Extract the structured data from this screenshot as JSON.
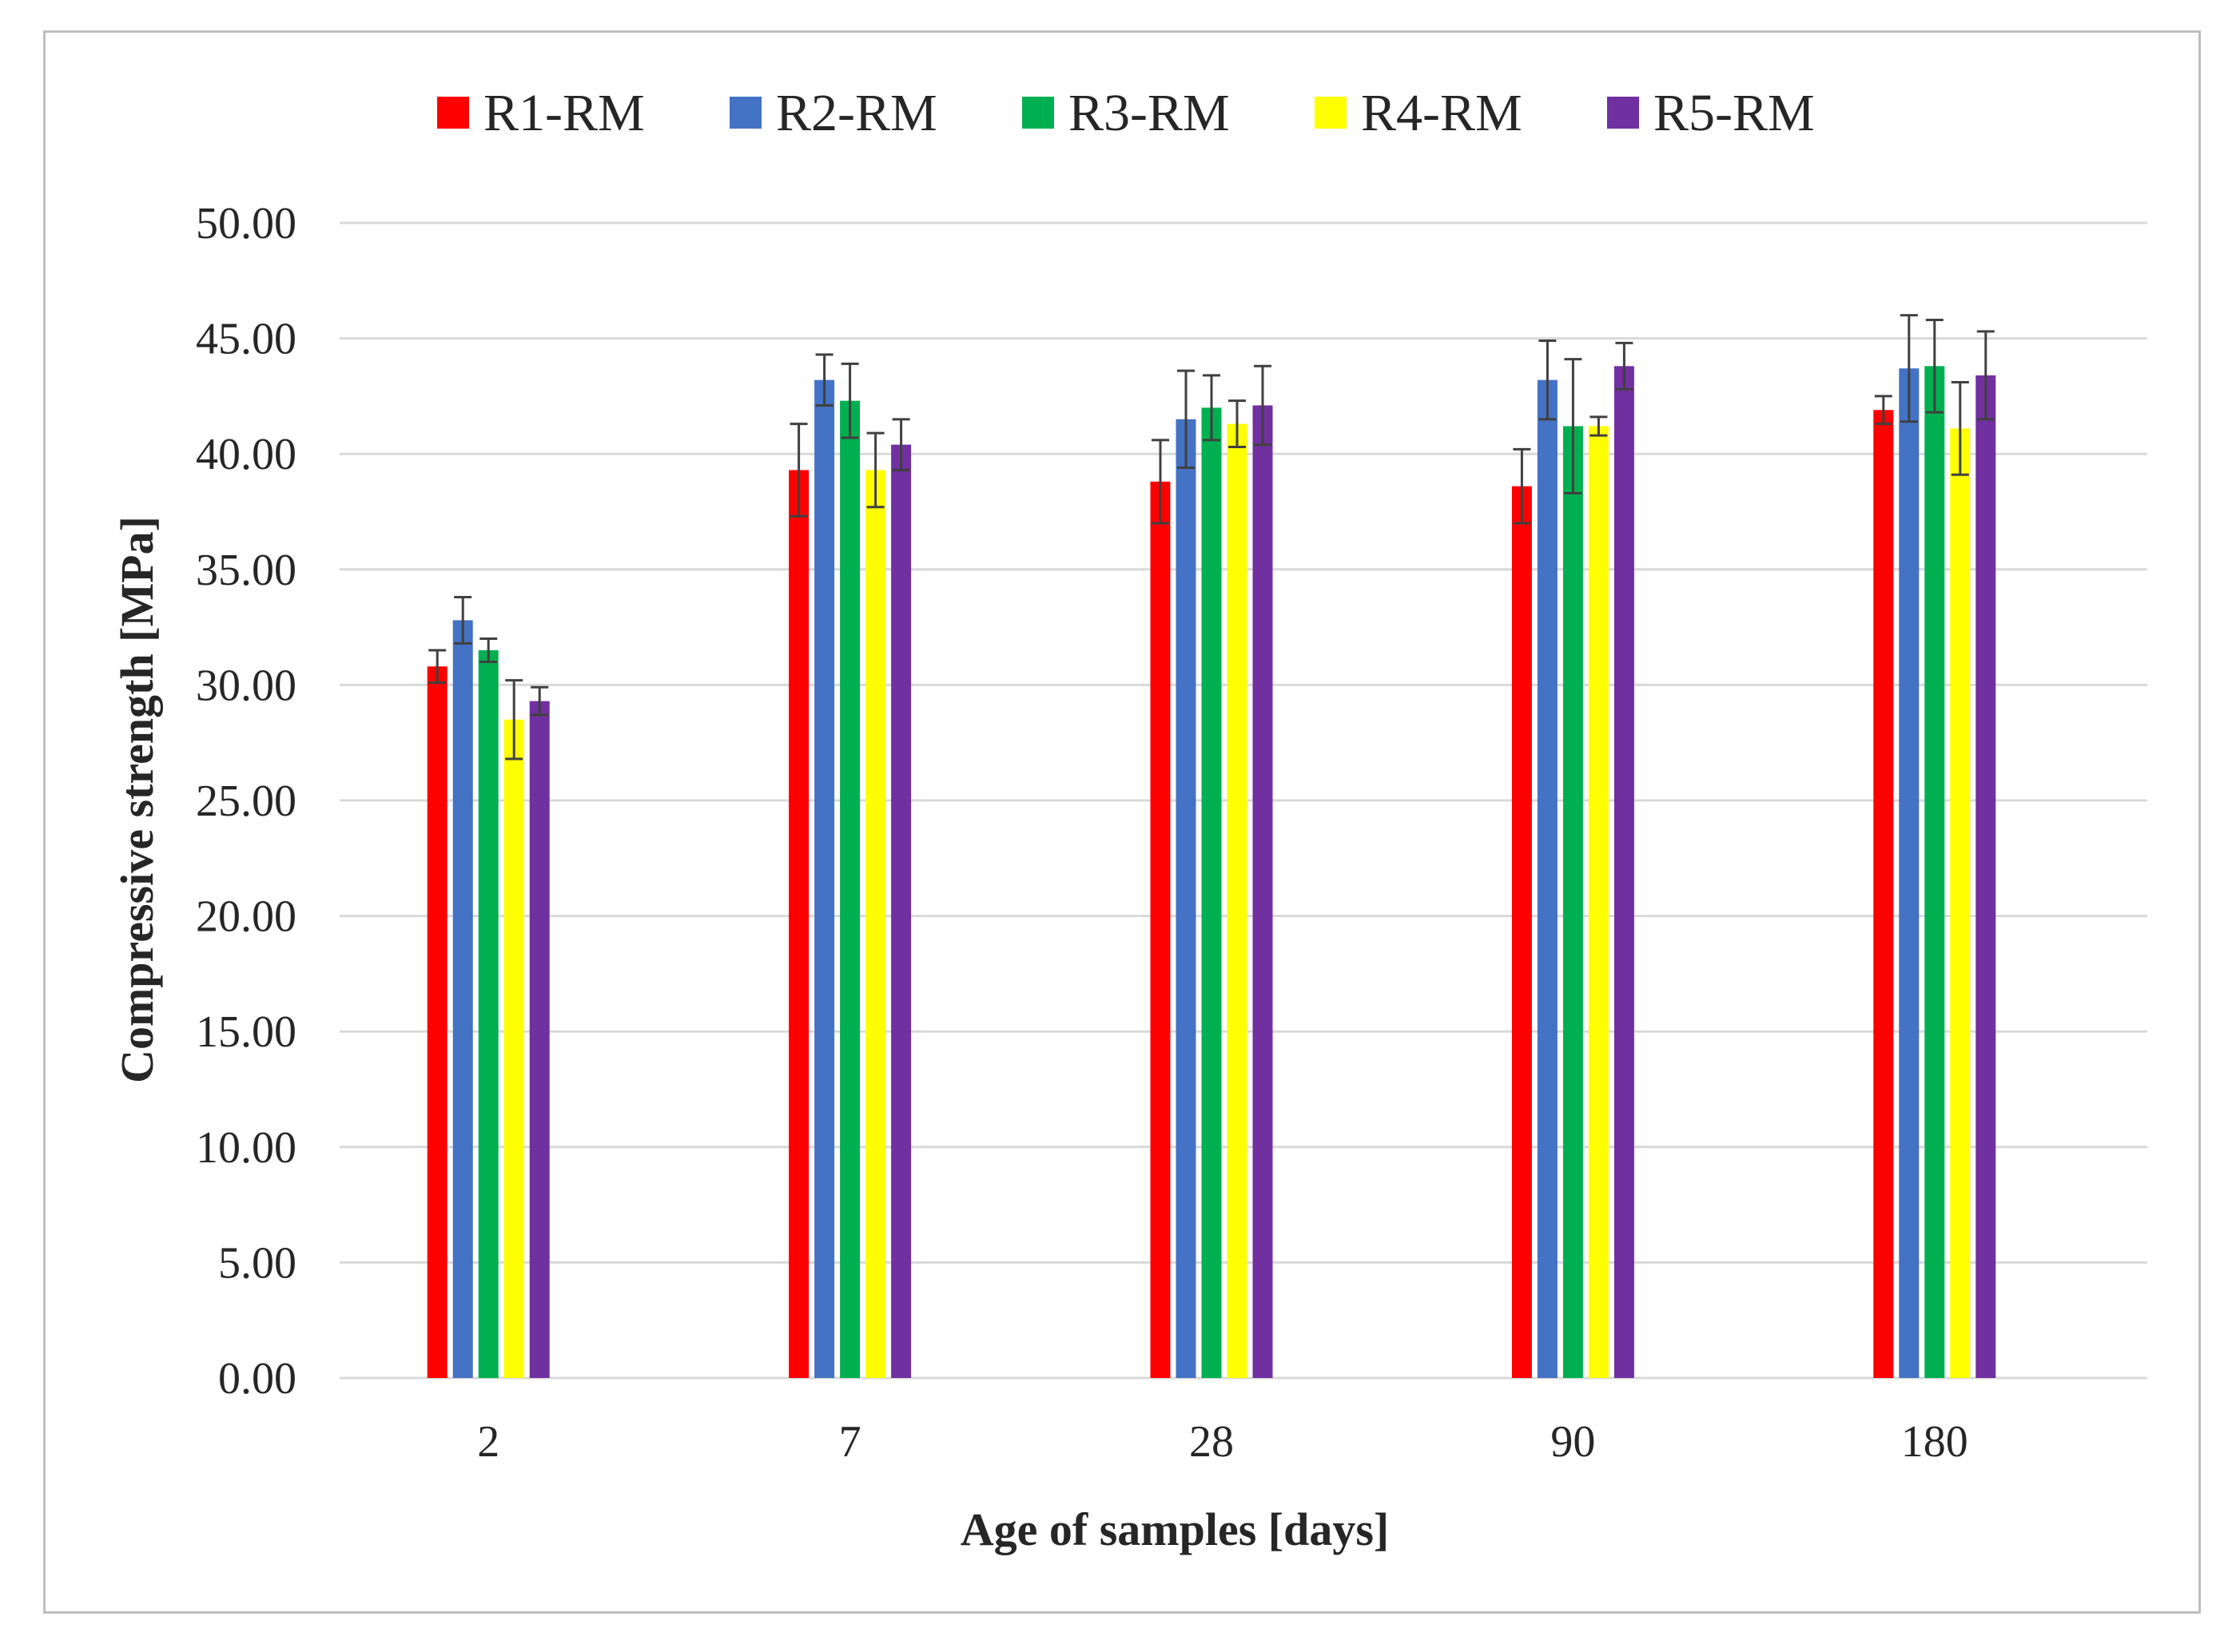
{
  "chart_data": {
    "type": "bar",
    "title": "",
    "xlabel": "Age of samples [days]",
    "ylabel": "Compressive strength [MPa]",
    "categories": [
      "2",
      "7",
      "28",
      "90",
      "180"
    ],
    "ylim": [
      0,
      50
    ],
    "yticks": [
      "0.00",
      "5.00",
      "10.00",
      "15.00",
      "20.00",
      "25.00",
      "30.00",
      "35.00",
      "40.00",
      "45.00",
      "50.00"
    ],
    "grid": true,
    "legend_position": "top",
    "error_bars": true,
    "series": [
      {
        "name": "R1-RM",
        "color": "#ff0000",
        "values": [
          30.8,
          39.3,
          38.8,
          38.6,
          41.9
        ],
        "errors": [
          0.7,
          2.0,
          1.8,
          1.6,
          0.6
        ]
      },
      {
        "name": "R2-RM",
        "color": "#4472c4",
        "values": [
          32.8,
          43.2,
          41.5,
          43.2,
          43.7
        ],
        "errors": [
          1.0,
          1.1,
          2.1,
          1.7,
          2.3
        ]
      },
      {
        "name": "R3-RM",
        "color": "#00b050",
        "values": [
          31.5,
          42.3,
          42.0,
          41.2,
          43.8
        ],
        "errors": [
          0.5,
          1.6,
          1.4,
          2.9,
          2.0
        ]
      },
      {
        "name": "R4-RM",
        "color": "#ffff00",
        "values": [
          28.5,
          39.3,
          41.3,
          41.2,
          41.1
        ],
        "errors": [
          1.7,
          1.6,
          1.0,
          0.4,
          2.0
        ]
      },
      {
        "name": "R5-RM",
        "color": "#7030a0",
        "values": [
          29.3,
          40.4,
          42.1,
          43.8,
          43.4
        ],
        "errors": [
          0.6,
          1.1,
          1.7,
          1.0,
          1.9
        ]
      }
    ]
  }
}
